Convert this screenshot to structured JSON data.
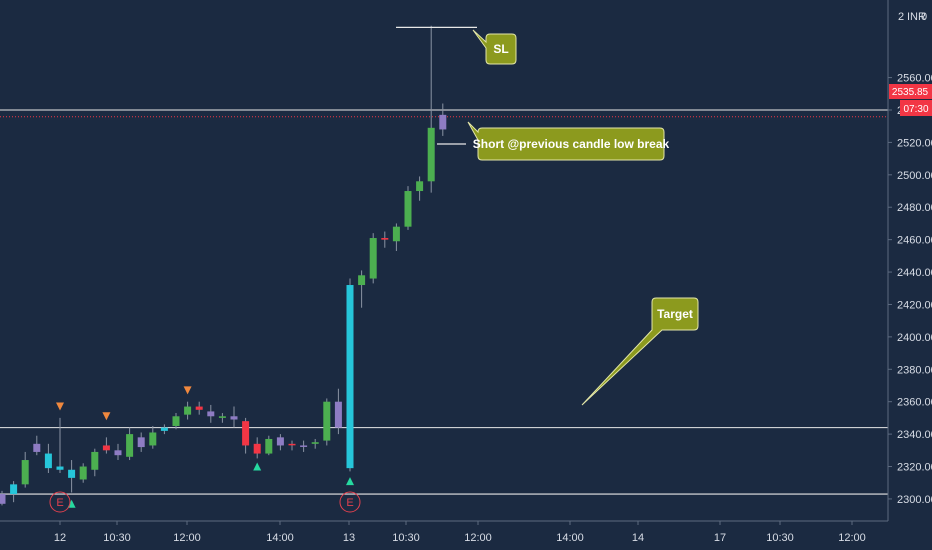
{
  "chart_data": {
    "type": "candlestick",
    "currency_label": "INR",
    "y_axis_top_label": "2",
    "y_axis_top_suffix": "0",
    "ylim": [
      2287,
      2598
    ],
    "y_ticks": [
      2560,
      2540,
      2520,
      2500,
      2480,
      2460,
      2440,
      2420,
      2400,
      2380,
      2360,
      2340,
      2320,
      2300
    ],
    "y_tick_labels": [
      "2560.00",
      "2540.00",
      "2520.00",
      "2500.00",
      "2480.00",
      "2460.00",
      "2440.00",
      "2420.00",
      "2400.00",
      "2380.00",
      "2360.00",
      "2340.00",
      "2320.00",
      "2300.00"
    ],
    "x_tick_labels": [
      "12",
      "10:30",
      "12:00",
      "14:00",
      "13",
      "10:30",
      "12:00",
      "14:00",
      "14",
      "17",
      "10:30",
      "12:00"
    ],
    "last_price": 2535.85,
    "last_price_label": "2535.85",
    "countdown_label": "07:30",
    "colors": {
      "up": "#4caf50",
      "down": "#f23645",
      "highlight": "#26c6da",
      "current": "#8e7cc3",
      "hline": "#e8e8e8",
      "price_tag": "#f23645",
      "callout": "#8c9a1e"
    },
    "candles": [
      {
        "o": 2297,
        "h": 2305,
        "l": 2296,
        "c": 2303,
        "color": "current"
      },
      {
        "o": 2303,
        "h": 2311,
        "l": 2298,
        "c": 2309,
        "color": "highlight"
      },
      {
        "o": 2309,
        "h": 2329,
        "l": 2307,
        "c": 2324,
        "color": "up"
      },
      {
        "o": 2334,
        "h": 2339,
        "l": 2327,
        "c": 2329,
        "color": "current"
      },
      {
        "o": 2328,
        "h": 2334,
        "l": 2316,
        "c": 2319,
        "color": "highlight"
      },
      {
        "o": 2320,
        "h": 2350,
        "l": 2316,
        "c": 2318,
        "color": "highlight"
      },
      {
        "o": 2318,
        "h": 2324,
        "l": 2304,
        "c": 2313,
        "color": "highlight"
      },
      {
        "o": 2312,
        "h": 2322,
        "l": 2310,
        "c": 2320,
        "color": "up"
      },
      {
        "o": 2318,
        "h": 2331,
        "l": 2314,
        "c": 2329,
        "color": "up"
      },
      {
        "o": 2333,
        "h": 2338,
        "l": 2328,
        "c": 2330,
        "color": "down"
      },
      {
        "o": 2330,
        "h": 2334,
        "l": 2324,
        "c": 2327,
        "color": "current"
      },
      {
        "o": 2326,
        "h": 2344,
        "l": 2324,
        "c": 2340,
        "color": "up"
      },
      {
        "o": 2338,
        "h": 2341,
        "l": 2329,
        "c": 2332,
        "color": "current"
      },
      {
        "o": 2333,
        "h": 2345,
        "l": 2331,
        "c": 2341,
        "color": "up"
      },
      {
        "o": 2342,
        "h": 2346,
        "l": 2340,
        "c": 2344,
        "color": "highlight"
      },
      {
        "o": 2345,
        "h": 2353,
        "l": 2343,
        "c": 2351,
        "color": "up"
      },
      {
        "o": 2352,
        "h": 2360,
        "l": 2349,
        "c": 2357,
        "color": "up"
      },
      {
        "o": 2357,
        "h": 2360,
        "l": 2352,
        "c": 2355,
        "color": "down"
      },
      {
        "o": 2354,
        "h": 2358,
        "l": 2347,
        "c": 2351,
        "color": "current"
      },
      {
        "o": 2351,
        "h": 2353,
        "l": 2347,
        "c": 2350,
        "color": "up"
      },
      {
        "o": 2351,
        "h": 2357,
        "l": 2344,
        "c": 2349,
        "color": "current"
      },
      {
        "o": 2348,
        "h": 2350,
        "l": 2328,
        "c": 2333,
        "color": "down"
      },
      {
        "o": 2334,
        "h": 2338,
        "l": 2325,
        "c": 2328,
        "color": "down"
      },
      {
        "o": 2328,
        "h": 2339,
        "l": 2327,
        "c": 2337,
        "color": "up"
      },
      {
        "o": 2338,
        "h": 2340,
        "l": 2330,
        "c": 2333,
        "color": "current"
      },
      {
        "o": 2334,
        "h": 2336,
        "l": 2330,
        "c": 2334,
        "color": "down"
      },
      {
        "o": 2333,
        "h": 2336,
        "l": 2329,
        "c": 2333,
        "color": "current"
      },
      {
        "o": 2334,
        "h": 2337,
        "l": 2331,
        "c": 2335,
        "color": "up"
      },
      {
        "o": 2336,
        "h": 2362,
        "l": 2333,
        "c": 2360,
        "color": "up"
      },
      {
        "o": 2360,
        "h": 2368,
        "l": 2340,
        "c": 2344,
        "color": "current"
      },
      {
        "o": 2432,
        "h": 2436,
        "l": 2317,
        "c": 2319,
        "color": "highlight"
      },
      {
        "o": 2432,
        "h": 2441,
        "l": 2418,
        "c": 2438,
        "color": "up"
      },
      {
        "o": 2436,
        "h": 2464,
        "l": 2433,
        "c": 2461,
        "color": "up"
      },
      {
        "o": 2461,
        "h": 2465,
        "l": 2455,
        "c": 2460,
        "color": "down"
      },
      {
        "o": 2459,
        "h": 2470,
        "l": 2453,
        "c": 2468,
        "color": "up"
      },
      {
        "o": 2468,
        "h": 2493,
        "l": 2466,
        "c": 2490,
        "color": "up"
      },
      {
        "o": 2490,
        "h": 2499,
        "l": 2484,
        "c": 2496,
        "color": "up"
      },
      {
        "o": 2496,
        "h": 2592,
        "l": 2489,
        "c": 2529,
        "color": "up"
      },
      {
        "o": 2528,
        "h": 2544,
        "l": 2524,
        "c": 2537,
        "color": "current"
      }
    ],
    "levels": [
      {
        "name": "resistance",
        "price": 2540
      },
      {
        "name": "support-upper",
        "price": 2344
      },
      {
        "name": "support-lower",
        "price": 2303
      }
    ],
    "markers": [
      {
        "type": "down-arrow",
        "candle": 5,
        "price": 2357
      },
      {
        "type": "down-arrow",
        "candle": 9,
        "price": 2351
      },
      {
        "type": "down-arrow",
        "candle": 16,
        "price": 2367
      },
      {
        "type": "up-arrow",
        "candle": 6,
        "price": 2297
      },
      {
        "type": "up-arrow",
        "candle": 22,
        "price": 2320
      },
      {
        "type": "up-arrow",
        "candle": 30,
        "price": 2311
      }
    ],
    "events": [
      {
        "label": "E",
        "candle": 5
      },
      {
        "label": "E",
        "candle": 30
      }
    ],
    "annotations": {
      "sl": {
        "text": "SL",
        "price": 2591
      },
      "short": {
        "text": "Short @previous candle low break",
        "price": 2519
      },
      "target": {
        "text": "Target"
      }
    }
  }
}
